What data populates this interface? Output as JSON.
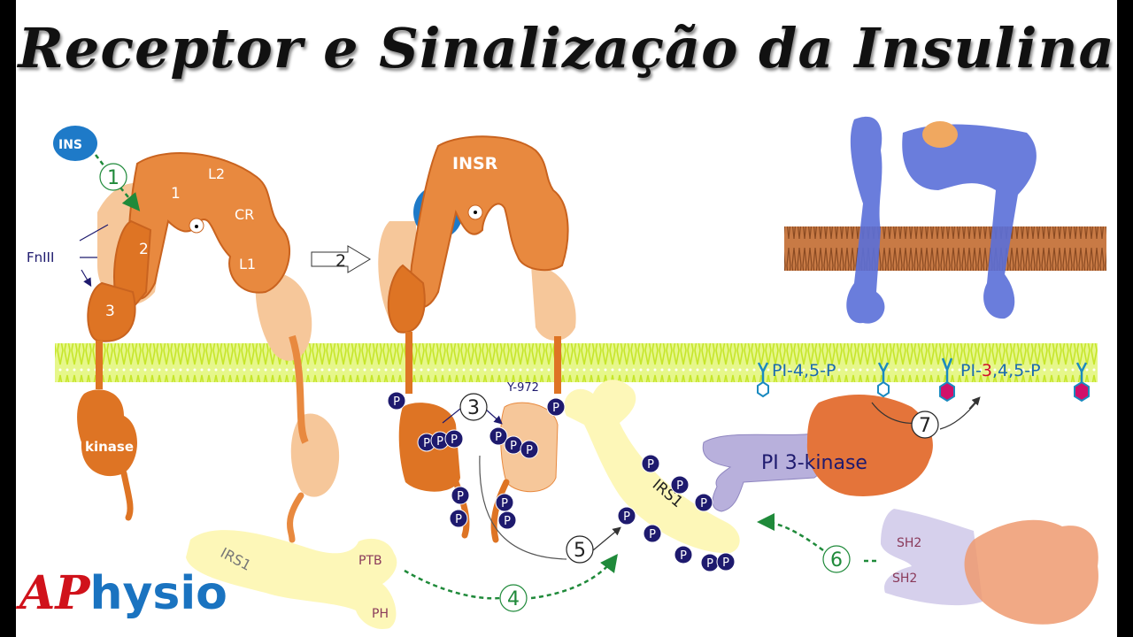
{
  "title": "Receptor e Sinalização da Insulina",
  "labels": {
    "ins": "INS",
    "fniii": "FnIII",
    "domain_1": "1",
    "domain_2": "2",
    "domain_3": "3",
    "l1": "L1",
    "l2": "L2",
    "cr": "CR",
    "kinase": "kinase",
    "insr": "INSR",
    "y972": "Y-972",
    "irs1": "IRS1",
    "ptb": "PTB",
    "ph": "PH",
    "pi3k": "PI 3-kinase",
    "sh2_top": "SH2",
    "sh2_bottom": "SH2",
    "pip2": "PI-4,5-P",
    "pip3_prefix": "PI-",
    "pip3_highlight": "3",
    "pip3_suffix": ",4,5-P",
    "phospho": "P"
  },
  "steps": [
    "1",
    "2",
    "3",
    "4",
    "5",
    "6",
    "7"
  ],
  "logo": {
    "accent": "AP",
    "rest": "hysio"
  },
  "colors": {
    "receptor": "#e8893f",
    "receptor_dark": "#de7424",
    "receptor_light": "#f6c79a",
    "membrane": "#d9f25a",
    "phospho": "#1e1a6e",
    "irs1": "#fdf7b8",
    "pi3k_regulatory": "#b8b0dc",
    "insulin": "#1e7ac8",
    "step_arrow": "#1f8a3a",
    "logo_red": "#d0121b",
    "logo_blue": "#1a73c0"
  }
}
